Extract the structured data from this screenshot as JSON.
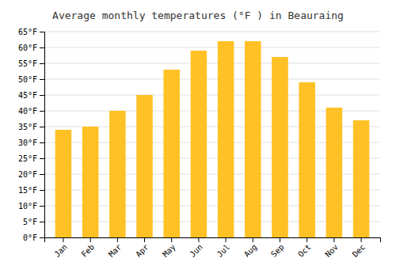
{
  "chart_data": {
    "type": "bar",
    "title": "Average monthly temperatures (°F ) in Beauraing",
    "categories": [
      "Jan",
      "Feb",
      "Mar",
      "Apr",
      "May",
      "Jun",
      "Jul",
      "Aug",
      "Sep",
      "Oct",
      "Nov",
      "Dec"
    ],
    "values": [
      34,
      35,
      40,
      45,
      53,
      59,
      62,
      62,
      57,
      49,
      41,
      37
    ],
    "color": "#FFC125",
    "ylim": [
      0,
      65
    ],
    "yticks": [
      {
        "value": 0,
        "label": "0°F"
      },
      {
        "value": 5,
        "label": "5°F"
      },
      {
        "value": 10,
        "label": "10°F"
      },
      {
        "value": 15,
        "label": "15°F"
      },
      {
        "value": 20,
        "label": "20°F"
      },
      {
        "value": 25,
        "label": "25°F"
      },
      {
        "value": 30,
        "label": "30°F"
      },
      {
        "value": 35,
        "label": "35°F"
      },
      {
        "value": 40,
        "label": "40°F"
      },
      {
        "value": 45,
        "label": "45°F"
      },
      {
        "value": 50,
        "label": "50°F"
      },
      {
        "value": 55,
        "label": "55°F"
      },
      {
        "value": 60,
        "label": "60°F"
      },
      {
        "value": 65,
        "label": "65°F"
      }
    ],
    "grid": true
  }
}
